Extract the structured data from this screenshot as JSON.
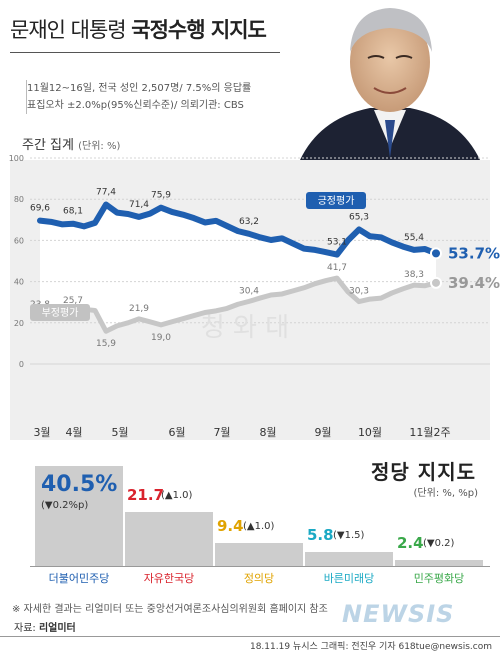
{
  "header": {
    "title_light": "문재인 대통령",
    "title_bold": "국정수행 지지도",
    "survey_line1": "11월12~16일, 전국 성인 2,507명/ 7.5%의 응답률",
    "survey_line2": "표집오차 ±2.0%p(95%신뢰수준)/ 의뢰기관: CBS"
  },
  "trend": {
    "label": "주간 집계",
    "unit": "(단위: %)",
    "watermark": "청 와 대"
  },
  "party": {
    "title": "정당 지지도",
    "unit": "(단위: %, %p)"
  },
  "footer": {
    "note": "※ 자세한 결과는 리얼미터 또는 중앙선거여론조사심의위원회 홈페이지 참조",
    "source_prefix": "자료: ",
    "source": "리얼미터",
    "credit": "18.11.19 뉴시스 그래픽: 전진우 기자 618tue@newsis.com",
    "logo": "NEWSIS"
  },
  "colors": {
    "approve": "#1f5fb0",
    "disapprove": "#c7c7c7",
    "panel": "#efefef"
  },
  "chart_data": [
    {
      "type": "line",
      "title": "주간 집계",
      "ylim": [
        0,
        100
      ],
      "yticks": [
        0,
        20,
        40,
        60,
        80,
        100
      ],
      "month_labels": [
        "3월",
        "4월",
        "5월",
        "6월",
        "7월",
        "8월",
        "9월",
        "10월",
        "11월2주"
      ],
      "grid": true,
      "series": [
        {
          "name": "긍정평가",
          "color": "#1f5fb0",
          "points": [
            [
              0,
              69.6
            ],
            [
              1,
              69.0
            ],
            [
              2,
              67.8
            ],
            [
              3,
              68.1
            ],
            [
              4,
              66.8
            ],
            [
              5,
              68.5
            ],
            [
              6,
              77.4
            ],
            [
              7,
              73.5
            ],
            [
              8,
              72.8
            ],
            [
              9,
              71.4
            ],
            [
              10,
              73.0
            ],
            [
              11,
              75.9
            ],
            [
              12,
              73.8
            ],
            [
              13,
              72.5
            ],
            [
              14,
              70.8
            ],
            [
              15,
              68.7
            ],
            [
              16,
              69.5
            ],
            [
              17,
              67.0
            ],
            [
              18,
              64.5
            ],
            [
              19,
              63.2
            ],
            [
              20,
              61.5
            ],
            [
              21,
              60.2
            ],
            [
              22,
              61.0
            ],
            [
              23,
              58.5
            ],
            [
              24,
              56.0
            ],
            [
              25,
              55.4
            ],
            [
              26,
              54.3
            ],
            [
              27,
              53.1
            ],
            [
              28,
              60.0
            ],
            [
              29,
              65.3
            ],
            [
              30,
              62.0
            ],
            [
              31,
              61.5
            ],
            [
              32,
              59.0
            ],
            [
              33,
              57.0
            ],
            [
              34,
              55.4
            ],
            [
              35,
              55.8
            ],
            [
              36,
              53.7
            ]
          ],
          "labels": [
            {
              "i": 0,
              "text": "69,6"
            },
            {
              "i": 3,
              "text": "68,1"
            },
            {
              "i": 6,
              "text": "77,4"
            },
            {
              "i": 9,
              "text": "71,4"
            },
            {
              "i": 11,
              "text": "75,9"
            },
            {
              "i": 19,
              "text": "63,2"
            },
            {
              "i": 27,
              "text": "53,1"
            },
            {
              "i": 29,
              "text": "65,3"
            },
            {
              "i": 34,
              "text": "55,4"
            }
          ],
          "final": "53.7%"
        },
        {
          "name": "부정평가",
          "color": "#c7c7c7",
          "points": [
            [
              0,
              23.8
            ],
            [
              1,
              25.0
            ],
            [
              2,
              26.2
            ],
            [
              3,
              25.7
            ],
            [
              4,
              26.5
            ],
            [
              5,
              26.0
            ],
            [
              6,
              15.9
            ],
            [
              7,
              18.5
            ],
            [
              8,
              20.0
            ],
            [
              9,
              21.9
            ],
            [
              10,
              20.5
            ],
            [
              11,
              19.0
            ],
            [
              12,
              20.5
            ],
            [
              13,
              22.0
            ],
            [
              14,
              23.5
            ],
            [
              15,
              25.0
            ],
            [
              16,
              25.8
            ],
            [
              17,
              27.0
            ],
            [
              18,
              29.0
            ],
            [
              19,
              30.4
            ],
            [
              20,
              32.0
            ],
            [
              21,
              33.5
            ],
            [
              22,
              34.0
            ],
            [
              23,
              35.5
            ],
            [
              24,
              37.0
            ],
            [
              25,
              39.0
            ],
            [
              26,
              40.5
            ],
            [
              27,
              41.7
            ],
            [
              28,
              35.0
            ],
            [
              29,
              30.3
            ],
            [
              30,
              31.5
            ],
            [
              31,
              32.0
            ],
            [
              32,
              34.5
            ],
            [
              33,
              36.5
            ],
            [
              34,
              38.3
            ],
            [
              35,
              38.0
            ],
            [
              36,
              39.4
            ]
          ],
          "labels": [
            {
              "i": 0,
              "text": "23,8"
            },
            {
              "i": 3,
              "text": "25,7"
            },
            {
              "i": 6,
              "text": "15,9"
            },
            {
              "i": 9,
              "text": "21,9"
            },
            {
              "i": 11,
              "text": "19,0"
            },
            {
              "i": 19,
              "text": "30,4"
            },
            {
              "i": 27,
              "text": "41,7"
            },
            {
              "i": 29,
              "text": "30,3"
            },
            {
              "i": 34,
              "text": "38,3"
            }
          ],
          "final": "39.4%"
        }
      ]
    },
    {
      "type": "bar",
      "title": "정당 지지도",
      "categories": [
        "더불어민주당",
        "자유한국당",
        "정의당",
        "바른미래당",
        "민주평화당"
      ],
      "values": [
        40.5,
        21.7,
        9.4,
        5.8,
        2.4
      ],
      "value_labels": [
        "40.5",
        "21.7",
        "9.4",
        "5.8",
        "2.4"
      ],
      "changes": [
        "(▼0.2%p)",
        "(▲1.0)",
        "(▲1.0)",
        "(▼1.5)",
        "(▼0.2)"
      ],
      "party_colors": [
        "#1f5fb0",
        "#d9232d",
        "#e0a300",
        "#1aa9c4",
        "#3aa84a"
      ]
    }
  ]
}
